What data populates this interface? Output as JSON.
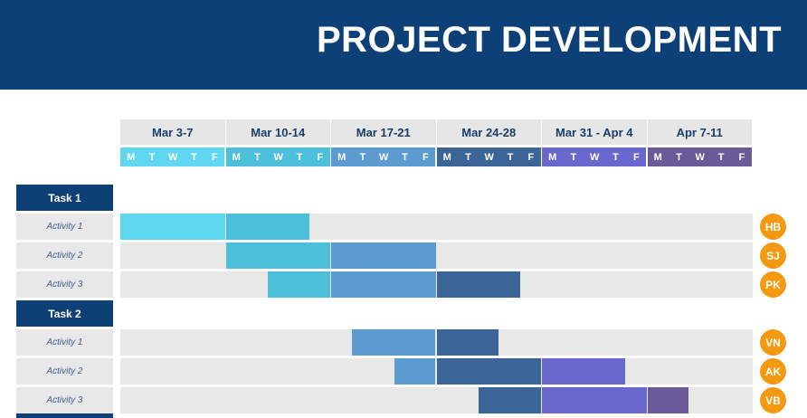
{
  "title": "PROJECT DEVELOPMENT",
  "weeks": [
    {
      "label": "Mar 3-7",
      "color": "#5dd8f0"
    },
    {
      "label": "Mar 10-14",
      "color": "#4cbfdb"
    },
    {
      "label": "Mar 17-21",
      "color": "#5b9bd0"
    },
    {
      "label": "Mar 24-28",
      "color": "#3a6596"
    },
    {
      "label": "Mar 31 - Apr 4",
      "color": "#6a67cf"
    },
    {
      "label": "Apr 7-11",
      "color": "#6a5b98"
    }
  ],
  "days": [
    "M",
    "T",
    "W",
    "T",
    "F"
  ],
  "tasks": [
    {
      "label": "Task 1",
      "activities": [
        {
          "label": "Activity 1",
          "assignee": "HB",
          "bars": [
            {
              "start": 0,
              "end": 5,
              "week": 0
            },
            {
              "start": 5,
              "end": 9,
              "week": 1
            }
          ]
        },
        {
          "label": "Activity 2",
          "assignee": "SJ",
          "bars": [
            {
              "start": 5,
              "end": 10,
              "week": 1
            },
            {
              "start": 10,
              "end": 15,
              "week": 2
            }
          ]
        },
        {
          "label": "Activity 3",
          "assignee": "PK",
          "bars": [
            {
              "start": 7,
              "end": 10,
              "week": 1
            },
            {
              "start": 10,
              "end": 15,
              "week": 2
            },
            {
              "start": 15,
              "end": 19,
              "week": 3
            }
          ]
        }
      ]
    },
    {
      "label": "Task 2",
      "activities": [
        {
          "label": "Activity 1",
          "assignee": "VN",
          "bars": [
            {
              "start": 11,
              "end": 15,
              "week": 2
            },
            {
              "start": 15,
              "end": 18,
              "week": 3
            }
          ]
        },
        {
          "label": "Activity 2",
          "assignee": "AK",
          "bars": [
            {
              "start": 13,
              "end": 15,
              "week": 2
            },
            {
              "start": 15,
              "end": 20,
              "week": 3
            },
            {
              "start": 20,
              "end": 24,
              "week": 4
            }
          ]
        },
        {
          "label": "Activity 3",
          "assignee": "VB",
          "bars": [
            {
              "start": 17,
              "end": 20,
              "week": 3
            },
            {
              "start": 20,
              "end": 25,
              "week": 4
            },
            {
              "start": 25,
              "end": 27,
              "week": 5
            }
          ]
        }
      ]
    }
  ]
}
